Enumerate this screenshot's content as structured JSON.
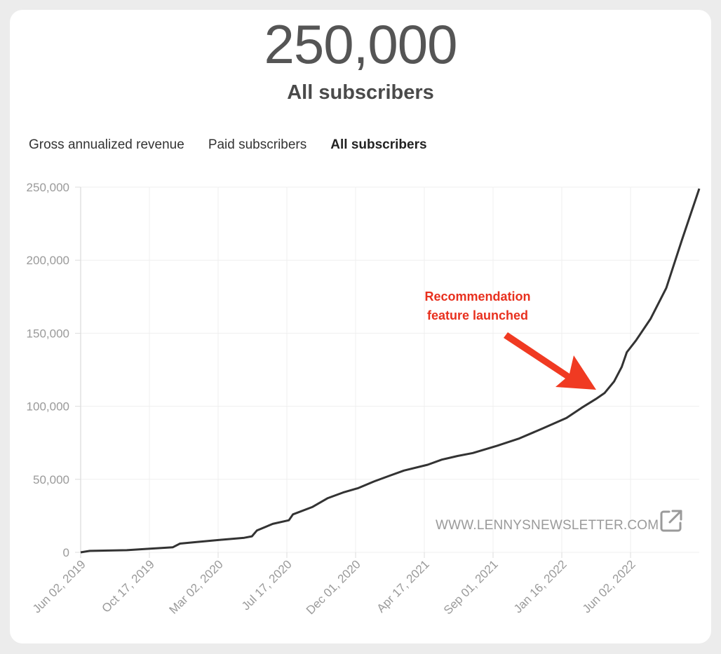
{
  "header": {
    "big_number": "250,000",
    "subtitle": "All subscribers"
  },
  "tabs": [
    {
      "label": "Gross annualized revenue",
      "active": false
    },
    {
      "label": "Paid subscribers",
      "active": false
    },
    {
      "label": "All subscribers",
      "active": true
    }
  ],
  "annotation": {
    "line1": "Recommendation",
    "line2": "feature launched",
    "color": "#e8301e"
  },
  "credit": {
    "text": "WWW.LENNYSNEWSLETTER.COM",
    "icon": "external-link-icon"
  },
  "chart_data": {
    "type": "line",
    "title": "",
    "xlabel": "",
    "ylabel": "",
    "ylim": [
      0,
      250000
    ],
    "yticks": [
      "0",
      "50,000",
      "100,000",
      "150,000",
      "200,000",
      "250,000"
    ],
    "xticks": [
      "Jun 02, 2019",
      "Oct 17, 2019",
      "Mar 02, 2020",
      "Jul 17, 2020",
      "Dec 01, 2020",
      "Apr 17, 2021",
      "Sep 01, 2021",
      "Jan 16, 2022",
      "Jun 02, 2022"
    ],
    "grid": true,
    "line_color": "#333333",
    "series": [
      {
        "x": [
          "2019-06-02",
          "2019-06-20",
          "2019-09-01",
          "2019-10-17",
          "2019-12-01",
          "2019-12-15",
          "2020-01-15",
          "2020-03-02",
          "2020-04-20",
          "2020-05-05",
          "2020-05-15",
          "2020-06-15",
          "2020-07-17",
          "2020-07-25",
          "2020-09-01",
          "2020-10-01",
          "2020-11-01",
          "2020-12-01",
          "2021-01-01",
          "2021-02-01",
          "2021-03-01",
          "2021-04-17",
          "2021-05-15",
          "2021-06-15",
          "2021-07-15",
          "2021-09-01",
          "2021-10-15",
          "2021-12-01",
          "2022-01-16",
          "2022-02-15",
          "2022-03-15",
          "2022-04-01",
          "2022-04-20",
          "2022-05-05",
          "2022-05-15",
          "2022-06-02",
          "2022-07-01",
          "2022-08-01",
          "2022-09-01",
          "2022-10-05"
        ],
        "y": [
          0,
          1000,
          1500,
          2500,
          3500,
          6000,
          7000,
          8500,
          10000,
          11000,
          15000,
          19500,
          22000,
          26000,
          31000,
          37000,
          41000,
          44000,
          48500,
          52500,
          56000,
          60000,
          63500,
          66000,
          68000,
          73000,
          78000,
          85000,
          92000,
          99000,
          105000,
          109000,
          117000,
          127000,
          137000,
          145000,
          160000,
          181000,
          214000,
          249000
        ]
      }
    ]
  }
}
